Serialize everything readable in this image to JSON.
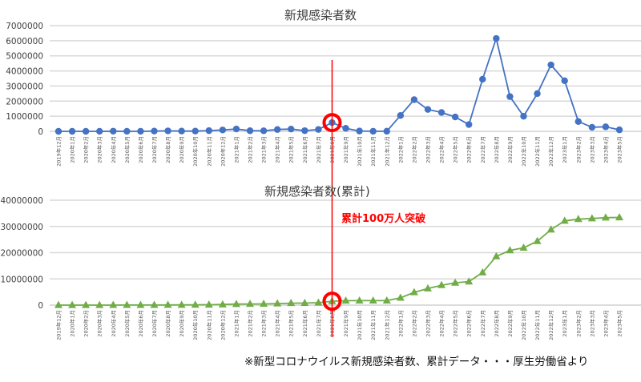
{
  "page": {
    "source_note": "※新型コロナウイルス新規感染者数、累計データ・・・厚生労働省より",
    "annotation": {
      "label": "累計100万人突破",
      "marker_category": "2021年8月",
      "color": "#ff0000"
    }
  },
  "chart_data": [
    {
      "type": "line",
      "title": "新規感染者数",
      "xlabel": "",
      "ylabel": "",
      "ylim": [
        0,
        7000000
      ],
      "yticks": [
        0,
        1000000,
        2000000,
        3000000,
        4000000,
        5000000,
        6000000,
        7000000
      ],
      "grid": true,
      "legend": null,
      "marker": "circle",
      "color": "#4472c4",
      "categories": [
        "2019年12月",
        "2020年1月",
        "2020年2月",
        "2020年3月",
        "2020年4月",
        "2020年5月",
        "2020年6月",
        "2020年7月",
        "2020年8月",
        "2020年9月",
        "2020年10月",
        "2020年11月",
        "2020年12月",
        "2021年1月",
        "2021年2月",
        "2021年3月",
        "2021年4月",
        "2021年5月",
        "2021年6月",
        "2021年7月",
        "2021年8月",
        "2021年9月",
        "2021年10月",
        "2021年11月",
        "2021年12月",
        "2022年1月",
        "2022年2月",
        "2022年3月",
        "2022年4月",
        "2022年5月",
        "2022年6月",
        "2022年7月",
        "2022年8月",
        "2022年9月",
        "2022年10月",
        "2022年11月",
        "2022年12月",
        "2023年1月",
        "2023年2月",
        "2023年3月",
        "2023年4月",
        "2023年5月"
      ],
      "series": [
        {
          "name": "新規感染者数",
          "values": [
            0,
            20,
            200,
            2000,
            12000,
            2500,
            1800,
            17000,
            32000,
            15000,
            17000,
            47000,
            92000,
            155000,
            40000,
            37000,
            120000,
            150000,
            45000,
            125000,
            580000,
            200000,
            20000,
            5000,
            7000,
            1050000,
            2100000,
            1450000,
            1250000,
            950000,
            450000,
            3450000,
            6150000,
            2300000,
            1000000,
            2500000,
            4400000,
            3350000,
            650000,
            270000,
            300000,
            100000
          ]
        }
      ]
    },
    {
      "type": "line",
      "title": "新規感染者数(累計)",
      "xlabel": "",
      "ylabel": "",
      "ylim": [
        0,
        40000000
      ],
      "yticks": [
        0,
        10000000,
        20000000,
        30000000,
        40000000
      ],
      "grid": true,
      "legend": null,
      "marker": "triangle",
      "color": "#70ad47",
      "categories": [
        "2019年12月",
        "2020年1月",
        "2020年2月",
        "2020年3月",
        "2020年4月",
        "2020年5月",
        "2020年6月",
        "2020年7月",
        "2020年8月",
        "2020年9月",
        "2020年10月",
        "2020年11月",
        "2020年12月",
        "2021年1月",
        "2021年2月",
        "2021年3月",
        "2021年4月",
        "2021年5月",
        "2021年6月",
        "2021年7月",
        "2021年8月",
        "2021年9月",
        "2021年10月",
        "2021年11月",
        "2021年12月",
        "2022年1月",
        "2022年2月",
        "2022年3月",
        "2022年4月",
        "2022年5月",
        "2022年6月",
        "2022年7月",
        "2022年8月",
        "2022年9月",
        "2022年10月",
        "2022年11月",
        "2022年12月",
        "2023年1月",
        "2023年2月",
        "2023年3月",
        "2023年4月",
        "2023年5月"
      ],
      "series": [
        {
          "name": "新規感染者数(累計)",
          "values": [
            0,
            20,
            220,
            2200,
            14000,
            17000,
            18000,
            35000,
            67000,
            82000,
            99000,
            146000,
            238000,
            393000,
            433000,
            470000,
            590000,
            740000,
            785000,
            910000,
            1490000,
            1690000,
            1710000,
            1715000,
            1722000,
            2770000,
            4870000,
            6320000,
            7570000,
            8520000,
            8970000,
            12420000,
            18570000,
            20870000,
            21870000,
            24370000,
            28770000,
            32120000,
            32770000,
            33040000,
            33340000,
            33440000
          ]
        }
      ]
    }
  ]
}
